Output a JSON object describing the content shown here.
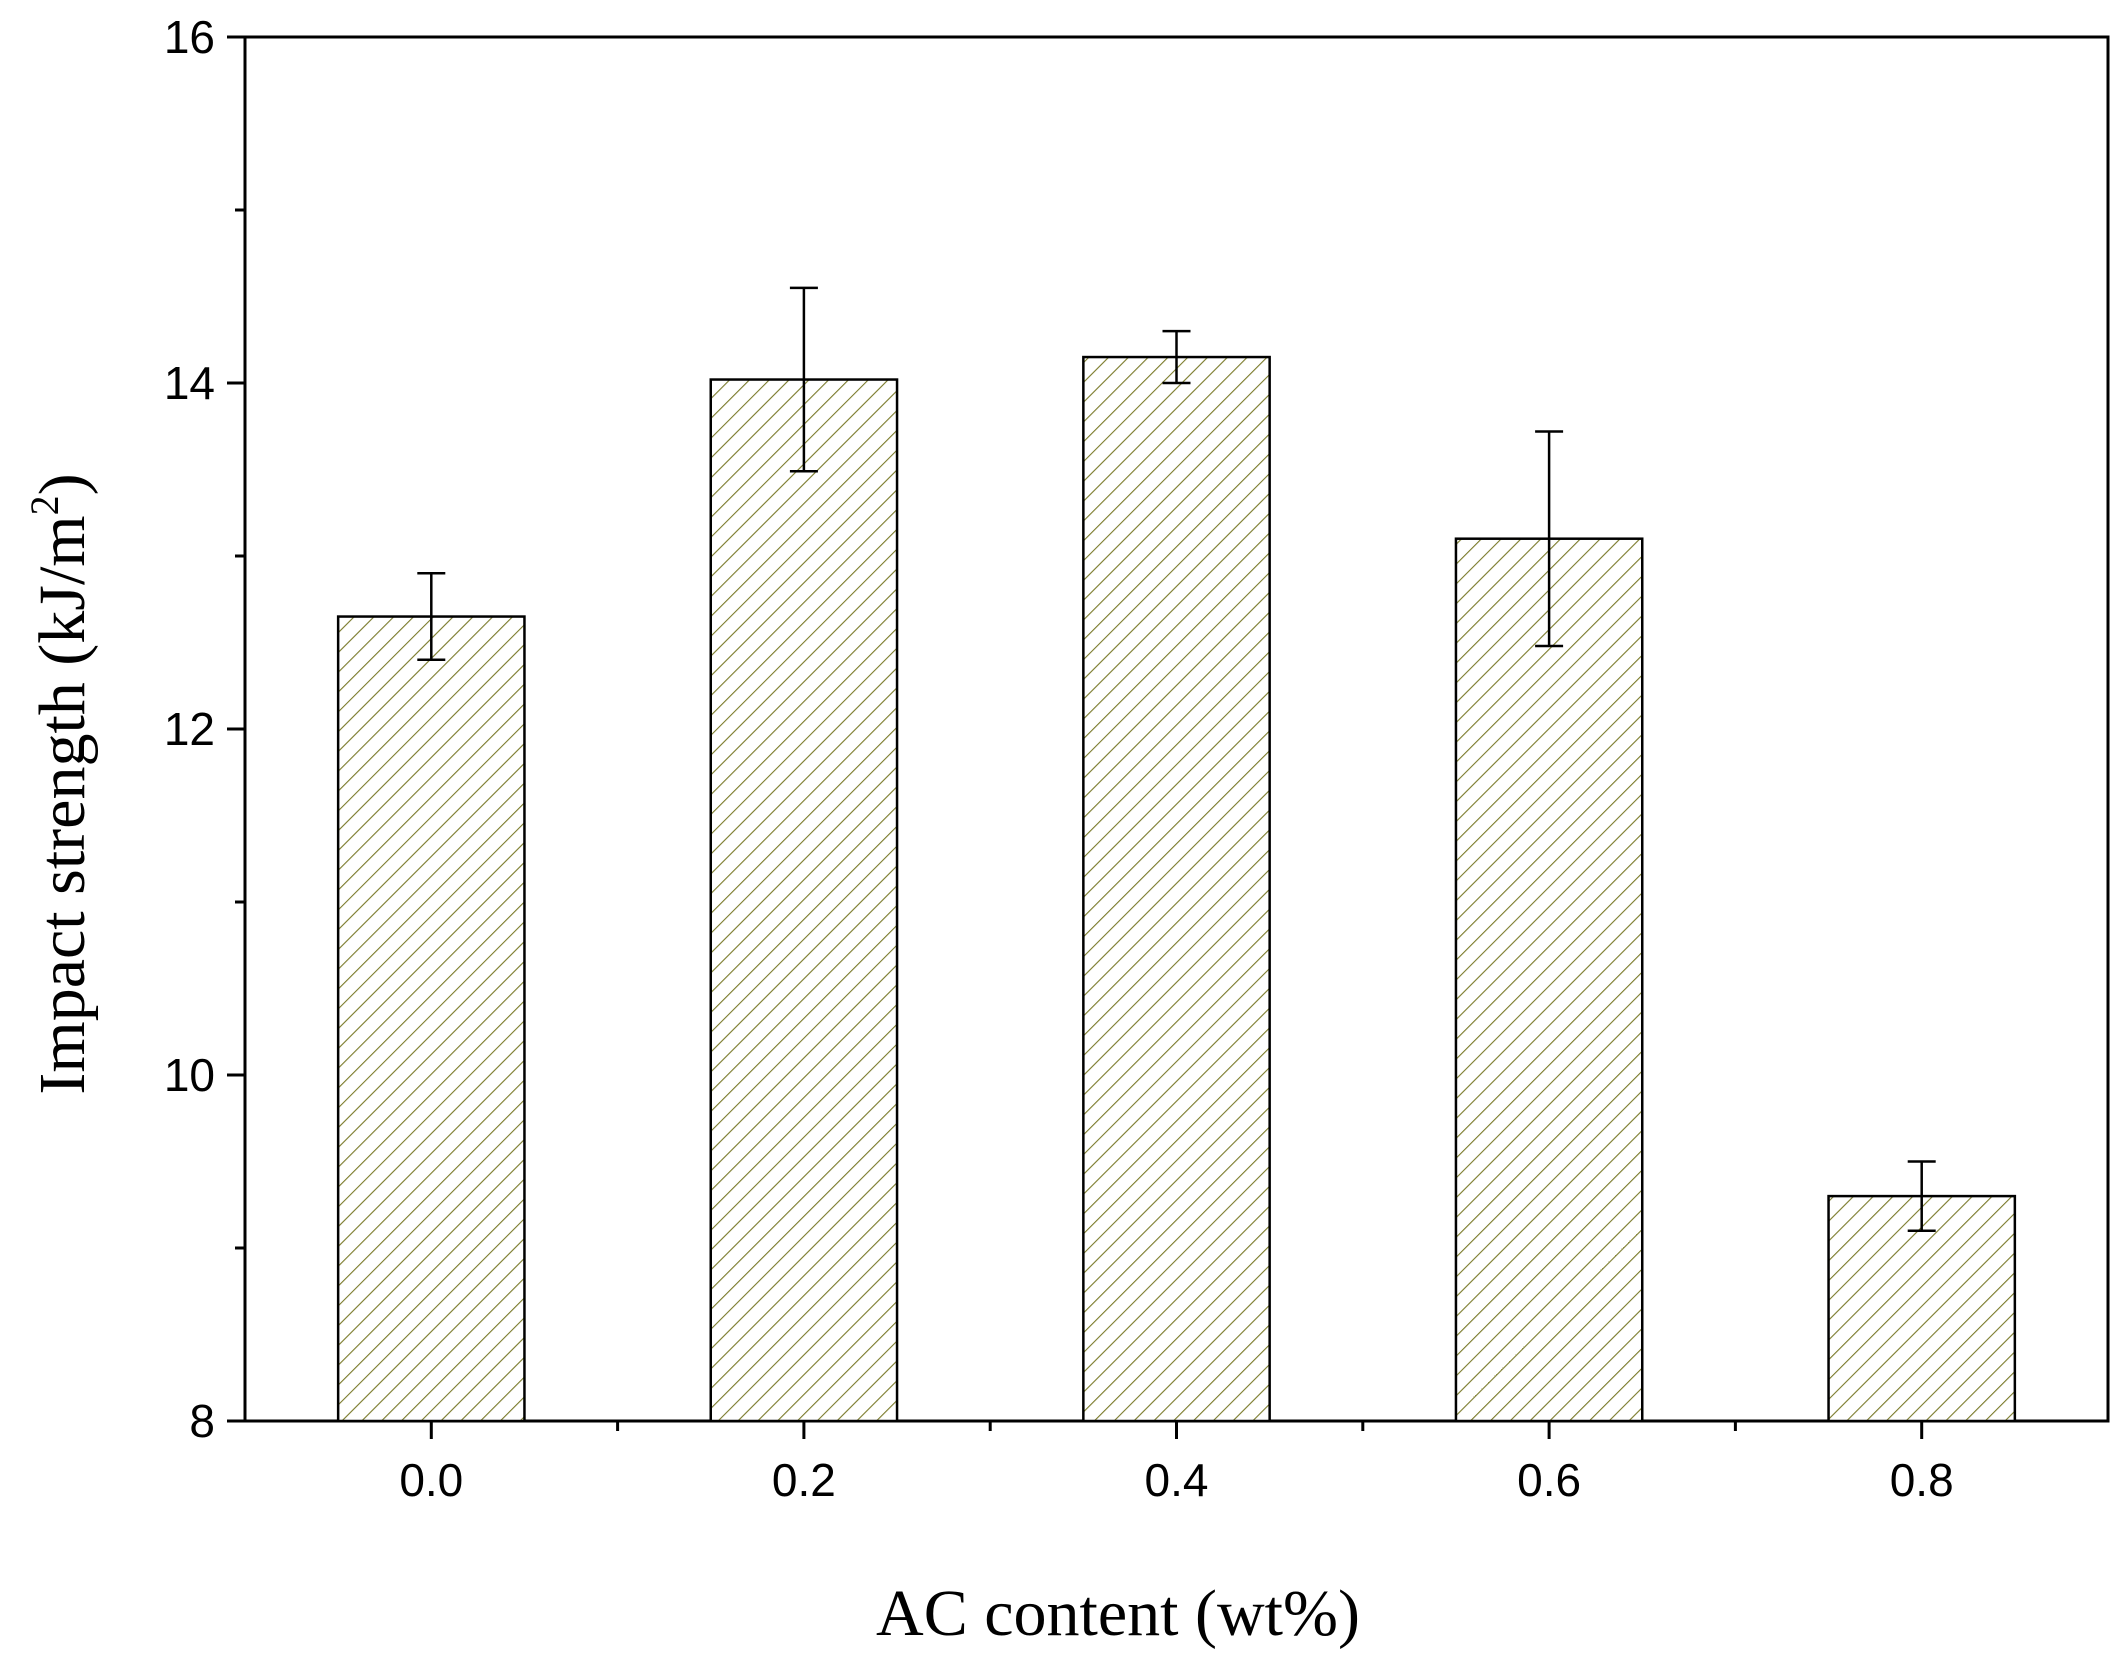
{
  "chart_data": {
    "type": "bar",
    "categories": [
      "0.0",
      "0.2",
      "0.4",
      "0.6",
      "0.8"
    ],
    "x": [
      0.0,
      0.2,
      0.4,
      0.6,
      0.8
    ],
    "values": [
      12.65,
      14.02,
      14.15,
      13.1,
      9.3
    ],
    "errors": [
      0.25,
      0.53,
      0.15,
      0.62,
      0.2
    ],
    "xlabel": "AC content (wt%)",
    "ylabel_main": "Impact strength (kJ/m",
    "ylabel_sup": "2",
    "ylabel_close": ")",
    "xlim": [
      -0.1,
      0.9
    ],
    "ylim": [
      8,
      16
    ],
    "y_major_ticks": [
      "8",
      "10",
      "12",
      "14",
      "16"
    ],
    "x_major_ticks": [
      "0.0",
      "0.2",
      "0.4",
      "0.6",
      "0.8"
    ],
    "bar_fill_pattern": "diagonal-hatch",
    "hatch_color": "#7a7a2a",
    "grid": false,
    "legend": "none"
  }
}
